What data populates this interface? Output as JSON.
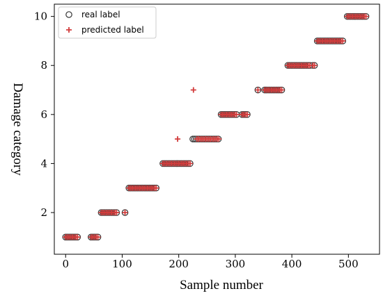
{
  "chart_data": {
    "type": "scatter",
    "xlabel": "Sample number",
    "ylabel": "Damage category",
    "xlim": [
      -20,
      555
    ],
    "ylim": [
      0.3,
      10.5
    ],
    "x_ticks": [
      0,
      100,
      200,
      300,
      400,
      500
    ],
    "y_ticks": [
      2,
      4,
      6,
      8,
      10
    ],
    "grid": false,
    "legend_position": "top-left",
    "colors": {
      "real": "#333333",
      "predicted": "#d23c3c"
    },
    "series": [
      {
        "name": "real label",
        "marker": "open-circle",
        "ranges": [
          {
            "y": 1,
            "x_from": 0,
            "x_to": 22
          },
          {
            "y": 1,
            "x_from": 45,
            "x_to": 57
          },
          {
            "y": 2,
            "x_from": 63,
            "x_to": 92
          },
          {
            "y": 2,
            "x_from": 105,
            "x_to": 105
          },
          {
            "y": 3,
            "x_from": 112,
            "x_to": 162
          },
          {
            "y": 4,
            "x_from": 172,
            "x_to": 222
          },
          {
            "y": 5,
            "x_from": 225,
            "x_to": 272
          },
          {
            "y": 6,
            "x_from": 275,
            "x_to": 302
          },
          {
            "y": 6,
            "x_from": 312,
            "x_to": 322
          },
          {
            "y": 7,
            "x_from": 340,
            "x_to": 340
          },
          {
            "y": 7,
            "x_from": 352,
            "x_to": 382
          },
          {
            "y": 8,
            "x_from": 393,
            "x_to": 432
          },
          {
            "y": 8,
            "x_from": 437,
            "x_to": 442
          },
          {
            "y": 9,
            "x_from": 445,
            "x_to": 492
          },
          {
            "y": 10,
            "x_from": 498,
            "x_to": 532
          }
        ]
      },
      {
        "name": "predicted label",
        "marker": "plus",
        "ranges": [
          {
            "y": 1,
            "x_from": 0,
            "x_to": 22
          },
          {
            "y": 1,
            "x_from": 45,
            "x_to": 57
          },
          {
            "y": 2,
            "x_from": 63,
            "x_to": 92
          },
          {
            "y": 2,
            "x_from": 105,
            "x_to": 105
          },
          {
            "y": 3,
            "x_from": 112,
            "x_to": 162
          },
          {
            "y": 4,
            "x_from": 172,
            "x_to": 222
          },
          {
            "y": 5,
            "x_from": 198,
            "x_to": 198
          },
          {
            "y": 7,
            "x_from": 226,
            "x_to": 226
          },
          {
            "y": 5,
            "x_from": 232,
            "x_to": 272
          },
          {
            "y": 6,
            "x_from": 275,
            "x_to": 302
          },
          {
            "y": 6,
            "x_from": 312,
            "x_to": 322
          },
          {
            "y": 7,
            "x_from": 340,
            "x_to": 340
          },
          {
            "y": 7,
            "x_from": 352,
            "x_to": 382
          },
          {
            "y": 8,
            "x_from": 393,
            "x_to": 432
          },
          {
            "y": 8,
            "x_from": 437,
            "x_to": 442
          },
          {
            "y": 9,
            "x_from": 445,
            "x_to": 492
          },
          {
            "y": 10,
            "x_from": 498,
            "x_to": 532
          }
        ]
      }
    ]
  }
}
